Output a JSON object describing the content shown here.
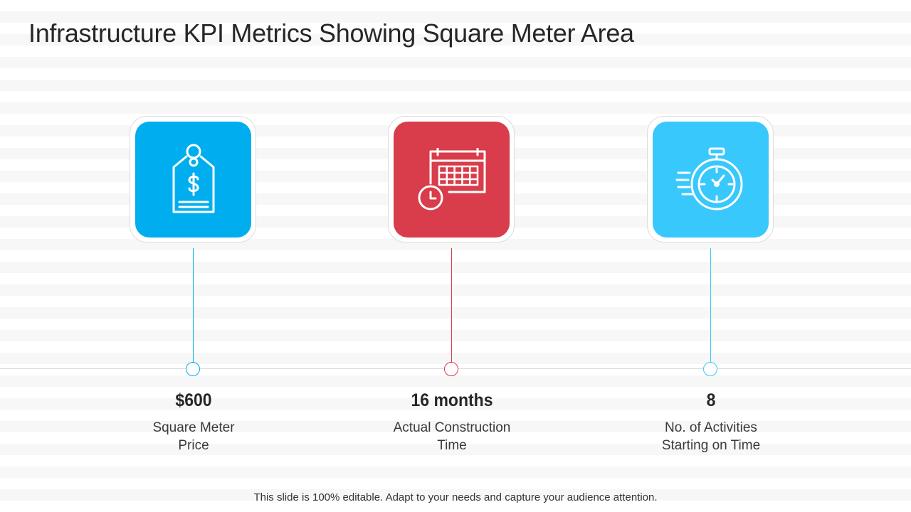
{
  "slide": {
    "title": "Infrastructure KPI Metrics Showing Square Meter Area",
    "footer": "This slide is 100% editable. Adapt to your needs and capture your audience attention."
  },
  "kpis": [
    {
      "value": "$600",
      "label_line1": "Square Meter",
      "label_line2": "Price",
      "icon": "price-tag-icon",
      "color": "#00aeef"
    },
    {
      "value": "16 months",
      "label_line1": "Actual Construction",
      "label_line2": "Time",
      "icon": "calendar-clock-icon",
      "color": "#d93c4a"
    },
    {
      "value": "8",
      "label_line1": "No. of Activities",
      "label_line2": "Starting on Time",
      "icon": "stopwatch-icon",
      "color": "#38c8fc"
    }
  ]
}
